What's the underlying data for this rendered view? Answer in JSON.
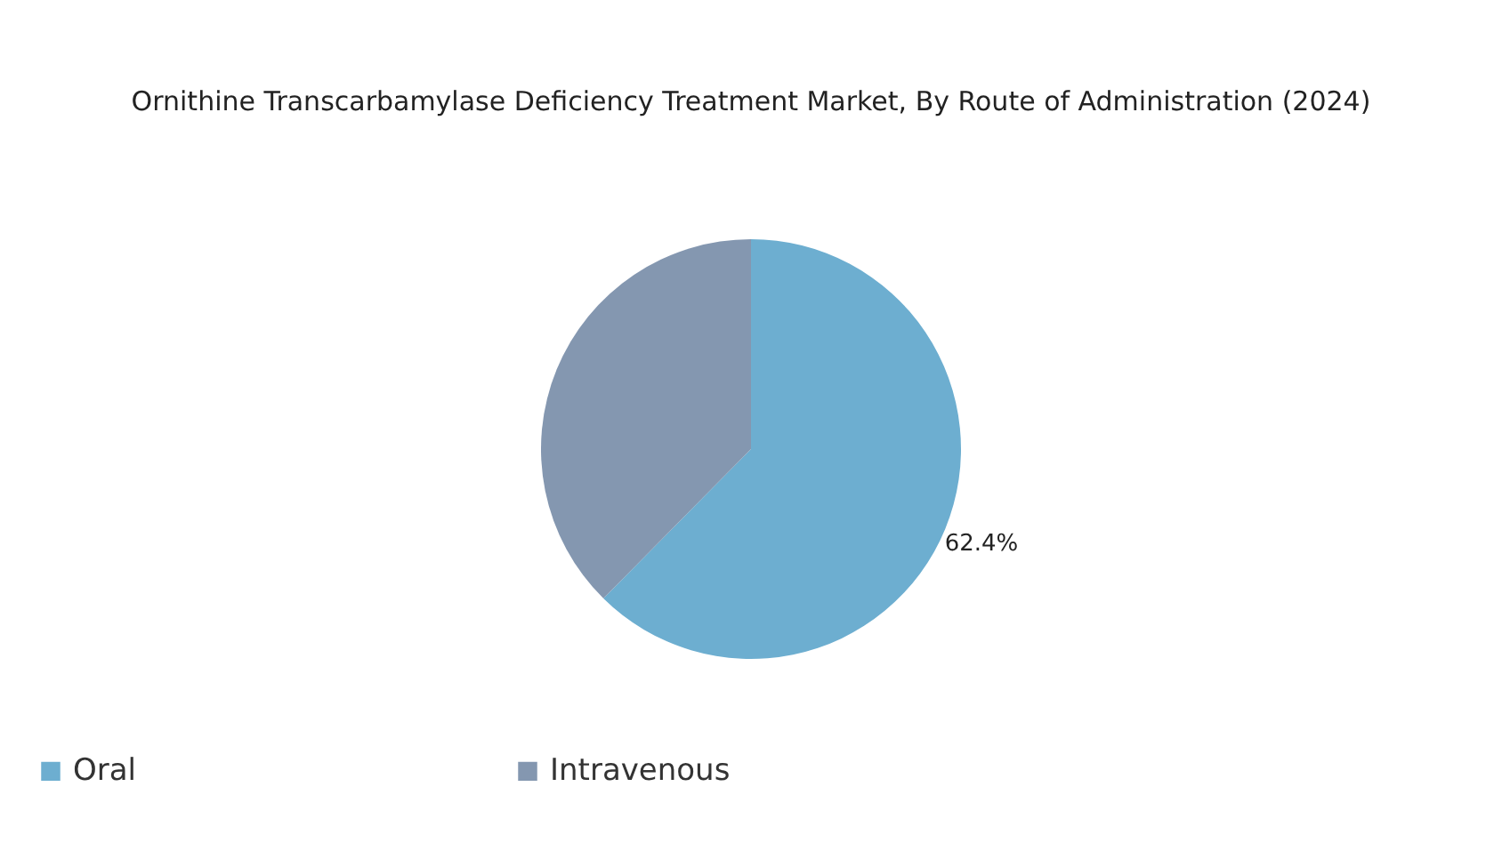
{
  "chart_data": {
    "type": "pie",
    "title": "Ornithine Transcarbamylase Deficiency Treatment Market, By Route of Administration (2024)",
    "categories": [
      "Oral",
      "Intravenous"
    ],
    "values": [
      62.4,
      37.6
    ],
    "colors": [
      "#6daed0",
      "#8497b0"
    ],
    "value_labels": [
      "62.4%",
      null
    ],
    "legend": "bottom"
  }
}
